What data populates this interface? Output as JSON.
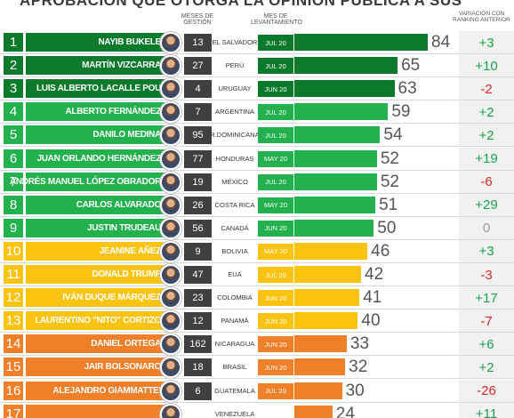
{
  "title": "APROBACIÓN QUE OTORGA LA OPINIÓN PÚBLICA A SUS GOBERNANTES",
  "headers": {
    "months": "MESES DE GESTIÓN",
    "survey": "MES DE LEVANTAMIENTO",
    "variation": "VARIACIÓN CON RANKING ANTERIOR"
  },
  "colors": {
    "green_dark": "#0c7a2b",
    "green": "#22b14c",
    "yellow": "#f9c310",
    "orange": "#ef7f29",
    "dark_badge": "#404040",
    "positive": "#19a34a",
    "negative": "#d42a2a"
  },
  "chart_data": {
    "type": "bar",
    "xlim": [
      0,
      100
    ],
    "rows": [
      {
        "rank": "1",
        "name": "NAYIB BUKELE",
        "months": "13",
        "country": "EL SALVADOR",
        "survey": "JUL 20",
        "value": 84,
        "variation": "+3",
        "tier": "green_dark"
      },
      {
        "rank": "2",
        "name": "MARTÍN VIZCARRA",
        "months": "27",
        "country": "PERÚ",
        "survey": "JUL 20",
        "value": 65,
        "variation": "+10",
        "tier": "green_dark"
      },
      {
        "rank": "3",
        "name": "LUIS ALBERTO LACALLE POU",
        "months": "4",
        "country": "URUGUAY",
        "survey": "JUN 20",
        "value": 63,
        "variation": "-2",
        "tier": "green_dark"
      },
      {
        "rank": "4",
        "name": "ALBERTO FERNÁNDEZ",
        "months": "7",
        "country": "ARGENTINA",
        "survey": "JUL 20",
        "value": 59,
        "variation": "+2",
        "tier": "green"
      },
      {
        "rank": "5",
        "name": "DANILO MEDINA",
        "months": "95",
        "country": "R.DOMINICANA",
        "survey": "JUL 20",
        "value": 54,
        "variation": "+2",
        "tier": "green"
      },
      {
        "rank": "6",
        "name": "JUAN ORLANDO HERNÁNDEZ",
        "months": "77",
        "country": "HONDURAS",
        "survey": "MAY 20",
        "value": 52,
        "variation": "+19",
        "tier": "green"
      },
      {
        "rank": "7",
        "name": "ANDRÉS MANUEL LÓPEZ OBRADOR",
        "months": "19",
        "country": "MÉXICO",
        "survey": "JUL 20",
        "value": 52,
        "variation": "-6",
        "tier": "green"
      },
      {
        "rank": "8",
        "name": "CARLOS ALVARADO",
        "months": "26",
        "country": "COSTA RICA",
        "survey": "MAY 20",
        "value": 51,
        "variation": "+29",
        "tier": "green"
      },
      {
        "rank": "9",
        "name": "JUSTIN TRUDEAU",
        "months": "56",
        "country": "CANADÁ",
        "survey": "JUN 20",
        "value": 50,
        "variation": "0",
        "tier": "green"
      },
      {
        "rank": "10",
        "name": "JEANINE AÑEZ",
        "months": "9",
        "country": "BOLIVIA",
        "survey": "MAY 20",
        "value": 46,
        "variation": "+3",
        "tier": "yellow"
      },
      {
        "rank": "11",
        "name": "DONALD TRUMP",
        "months": "47",
        "country": "EUA",
        "survey": "JUL 20",
        "value": 42,
        "variation": "-3",
        "tier": "yellow"
      },
      {
        "rank": "12",
        "name": "IVÁN DUQUE MÁRQUEZ",
        "months": "23",
        "country": "COLOMBIA",
        "survey": "JUN 20",
        "value": 41,
        "variation": "+17",
        "tier": "yellow"
      },
      {
        "rank": "13",
        "name": "LAURENTINO \"NITO\" CORTIZO",
        "months": "12",
        "country": "PANAMÁ",
        "survey": "JUN 20",
        "value": 40,
        "variation": "-7",
        "tier": "yellow"
      },
      {
        "rank": "14",
        "name": "DANIEL ORTEGA",
        "months": "162",
        "country": "NICARAGUA",
        "survey": "JUN 20",
        "value": 33,
        "variation": "+6",
        "tier": "orange"
      },
      {
        "rank": "15",
        "name": "JAIR BOLSONARO",
        "months": "18",
        "country": "BRASIL",
        "survey": "JUN 20",
        "value": 32,
        "variation": "+2",
        "tier": "orange"
      },
      {
        "rank": "16",
        "name": "ALEJANDRO GIAMMATTEI",
        "months": "6",
        "country": "GUATEMALA",
        "survey": "JUL 20",
        "value": 30,
        "variation": "-26",
        "tier": "orange"
      },
      {
        "rank": "17",
        "name": "",
        "months": "",
        "country": "VENEZUELA",
        "survey": "",
        "value": 24,
        "variation": "+11",
        "tier": "orange"
      }
    ]
  }
}
